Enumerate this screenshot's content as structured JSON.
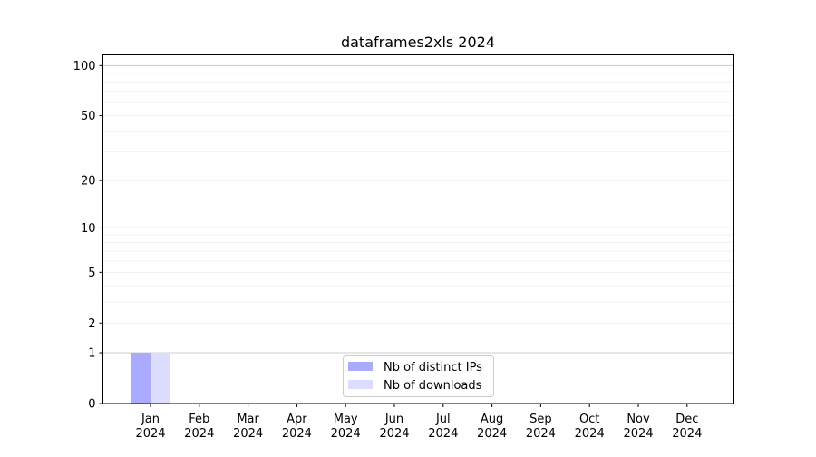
{
  "chart_data": {
    "type": "bar",
    "title": "dataframes2xls 2024",
    "xlabel": "",
    "ylabel": "",
    "yscale": "log(1+y)",
    "ylim": [
      0,
      116
    ],
    "yticks": [
      0,
      1,
      2,
      5,
      10,
      20,
      50,
      100
    ],
    "ytick_labels": [
      "0",
      "1",
      "2",
      "5",
      "10",
      "20",
      "50",
      "100"
    ],
    "grid": true,
    "legend_position": "bottom-center",
    "categories": [
      "Jan\n2024",
      "Feb\n2024",
      "Mar\n2024",
      "Apr\n2024",
      "May\n2024",
      "Jun\n2024",
      "Jul\n2024",
      "Aug\n2024",
      "Sep\n2024",
      "Oct\n2024",
      "Nov\n2024",
      "Dec\n2024"
    ],
    "series": [
      {
        "name": "Nb of distinct IPs",
        "color": "#aaaaff",
        "values": [
          1,
          0,
          0,
          0,
          0,
          0,
          0,
          0,
          0,
          0,
          0,
          0
        ]
      },
      {
        "name": "Nb of downloads",
        "color": "#ddddff",
        "values": [
          1,
          0,
          0,
          0,
          0,
          0,
          0,
          0,
          0,
          0,
          0,
          0
        ]
      }
    ]
  }
}
